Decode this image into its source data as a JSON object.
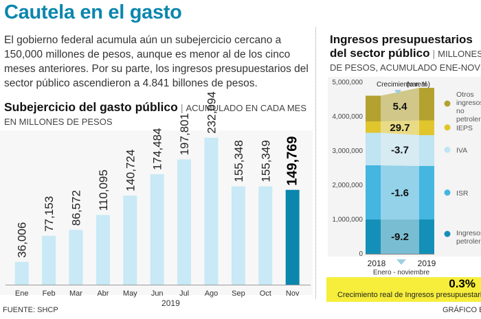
{
  "title": "Cautela en el gasto",
  "intro": "El gobierno federal acumula aún un subejercicio cercano a 150,000 millones de pesos, aunque es menor al de los cinco meses anteriores. Por su parte, los ingresos presupuestarios del sector público ascendieron a 4.841 billones de pesos.",
  "left_chart": {
    "heading": "Subejercicio del gasto público",
    "subheading": "ACUMULADO EN CADA MES EN MILLONES DE PESOS",
    "year": "2019"
  },
  "right_chart": {
    "heading_line1": "Ingresos presupuestarios",
    "heading_line2": "del sector público",
    "subheading_a": "MILLONES",
    "subheading_b": "DE PESOS, ACUMULADO ENE-NOV",
    "crecimiento_label": "Crecimiento real",
    "crecimiento_units": "(var. %)",
    "period_label": "Enero - noviembre"
  },
  "banner": {
    "pct": "0.3%",
    "text": "Crecimiento real de Ingresos presupuestarios"
  },
  "source": "FUENTE: SHCP",
  "credit": "GRÁFICO EL",
  "colors": {
    "title": "#0b86ad",
    "bar_light": "#c8e9f5",
    "bar_highlight": "#0b86ad",
    "banner": "#f6ee3b"
  },
  "chart_data": [
    {
      "type": "bar",
      "title": "Subejercicio del gasto público",
      "categories": [
        "Ene",
        "Feb",
        "Mar",
        "Abr",
        "May",
        "Jun",
        "Jul",
        "Ago",
        "Sep",
        "Oct",
        "Nov"
      ],
      "values": [
        36006,
        77153,
        86572,
        110095,
        140724,
        174484,
        197801,
        232094,
        155348,
        155349,
        149769
      ],
      "value_labels": [
        "36,006",
        "77,153",
        "86,572",
        "110,095",
        "140,724",
        "174,484",
        "197,801",
        "232,094",
        "155,348",
        "155,349",
        "149,769"
      ],
      "highlight_index": 10,
      "xlabel": "2019",
      "ylabel": "",
      "ylim": [
        0,
        260000
      ]
    },
    {
      "type": "bar",
      "stacked": true,
      "title": "Ingresos presupuestarios del sector público",
      "categories": [
        "2018",
        "2019"
      ],
      "series": [
        {
          "name": "Ingresos petroleros",
          "legend": [
            "Ingresos",
            "petroleros"
          ],
          "values": [
            1000000,
            1000000
          ],
          "color": "#1490b8"
        },
        {
          "name": "ISR",
          "legend": [
            "ISR"
          ],
          "values": [
            1580000,
            1560000
          ],
          "color": "#44b6e0"
        },
        {
          "name": "IVA",
          "legend": [
            "IVA"
          ],
          "values": [
            950000,
            900000
          ],
          "color": "#bfe4f2"
        },
        {
          "name": "IEPS",
          "legend": [
            "IEPS"
          ],
          "values": [
            330000,
            430000
          ],
          "color": "#e0c62c"
        },
        {
          "name": "Otros ingresos no petroleros",
          "legend": [
            "Otros",
            "ingresos",
            "no",
            "petroleros"
          ],
          "values": [
            750000,
            950000
          ],
          "color": "#b3a230"
        }
      ],
      "growth_labels": [
        "-9.2",
        "-1.6",
        "-3.7",
        "29.7",
        "5.4"
      ],
      "yticks": [
        "0",
        "1,000,000",
        "2,000,000",
        "3,000,000",
        "4,000,000",
        "5,000,000"
      ],
      "ylim": [
        0,
        5000000
      ],
      "xlabel": "Enero - noviembre"
    }
  ]
}
